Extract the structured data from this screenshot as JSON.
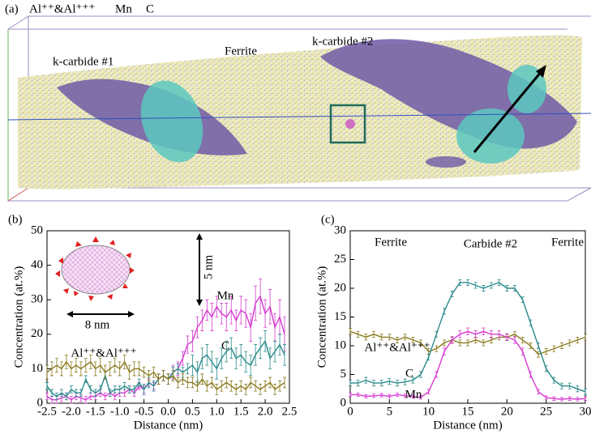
{
  "panel_a": {
    "label": "(a)",
    "legend": [
      {
        "text": "Al⁺⁺&Al⁺⁺⁺",
        "color": "#a07a2c"
      },
      {
        "text": "Mn",
        "color": "#d030c0"
      },
      {
        "text": "C",
        "color": "#2a9090"
      }
    ],
    "regions": [
      "k-carbide #1",
      "Ferrite",
      "k-carbide #2"
    ]
  },
  "chart_data": [
    {
      "type": "line",
      "xlabel": "Distance (nm)",
      "ylabel": "Concentration (at.%)",
      "annotations": [
        "(b)",
        "5 nm",
        "8 nm"
      ],
      "xlim": [
        -2.5,
        2.5
      ],
      "ylim": [
        0,
        50
      ],
      "xticks": [
        -2.5,
        {
          "value": -2,
          "label": "-2.0"
        },
        -1.5,
        {
          "value": -1,
          "label": "-1.0"
        },
        -0.5,
        {
          "value": 0,
          "label": "0.0"
        },
        0.5,
        {
          "value": 1,
          "label": "1.0"
        },
        1.5,
        {
          "value": 2,
          "label": "2.0"
        },
        2.5
      ],
      "yticks": [
        0,
        10,
        20,
        30,
        40,
        50
      ],
      "x": [
        -2.5,
        -2.4,
        -2.3,
        -2.2,
        -2.1,
        -2.0,
        -1.9,
        -1.8,
        -1.7,
        -1.6,
        -1.5,
        -1.4,
        -1.3,
        -1.2,
        -1.1,
        -1.0,
        -0.9,
        -0.8,
        -0.7,
        -0.6,
        -0.5,
        -0.4,
        -0.3,
        -0.2,
        -0.1,
        0,
        0.1,
        0.2,
        0.3,
        0.4,
        0.5,
        0.6,
        0.7,
        0.8,
        0.9,
        1.0,
        1.1,
        1.2,
        1.3,
        1.4,
        1.5,
        1.6,
        1.7,
        1.8,
        1.9,
        2.0,
        2.1,
        2.2,
        2.3,
        2.4
      ],
      "series": [
        {
          "name": "Mn",
          "color": "#d63bd0",
          "values": [
            2,
            1,
            1,
            1.5,
            2,
            1,
            2,
            1.5,
            1,
            2,
            2,
            3,
            2,
            3,
            2,
            3,
            3,
            4,
            3,
            5,
            4,
            6,
            5,
            7,
            8,
            7,
            9,
            10,
            13,
            17,
            18,
            22,
            24,
            27,
            25,
            28,
            26,
            25,
            27,
            24,
            27,
            26,
            22,
            29,
            31,
            26,
            28,
            22,
            25,
            20
          ],
          "errors": [
            1,
            1,
            1,
            1,
            1,
            1,
            1,
            1,
            1,
            1,
            1,
            1,
            1,
            1,
            1,
            1,
            1,
            1,
            1,
            1,
            1,
            1,
            1,
            1.5,
            1.5,
            1.5,
            2,
            2,
            2,
            2.5,
            3,
            3,
            3,
            3,
            4,
            3,
            3,
            4,
            4,
            3,
            4,
            4,
            4,
            5,
            5,
            4,
            5,
            4,
            5,
            5
          ]
        },
        {
          "name": "C",
          "color": "#2a8a8a",
          "values": [
            5,
            3,
            2,
            3,
            2,
            4,
            3,
            3,
            7,
            4,
            3,
            4,
            8,
            3,
            4,
            4,
            5,
            4,
            4,
            6,
            4,
            6,
            5,
            7,
            8,
            7,
            9,
            10,
            9,
            10,
            11,
            9,
            13,
            14,
            12,
            10,
            13,
            15,
            16,
            13,
            14,
            12,
            11,
            14,
            16,
            18,
            13,
            15,
            17,
            14
          ],
          "errors": [
            1,
            1,
            1,
            1,
            1,
            1,
            1,
            1,
            1,
            1,
            1,
            1,
            1,
            1,
            1,
            1,
            1,
            1,
            1,
            1,
            1.5,
            1.5,
            1.5,
            1.5,
            1.5,
            1.5,
            1.5,
            1.5,
            1.5,
            1.5,
            3,
            3,
            3,
            3,
            3,
            3,
            3,
            3,
            3,
            3,
            3,
            3,
            3,
            3,
            3,
            3,
            3,
            3,
            3,
            3
          ]
        },
        {
          "name": "Al⁺⁺&Al⁺⁺⁺",
          "color": "#8a7a1e",
          "values": [
            9,
            10,
            11,
            10,
            12,
            10,
            11,
            10,
            11,
            12,
            10,
            11,
            9,
            10,
            11,
            10,
            12,
            9,
            10,
            10,
            9,
            8,
            9,
            7,
            8,
            7,
            8,
            6,
            7,
            6,
            6,
            5,
            7,
            5,
            6,
            4,
            5,
            6,
            5,
            4,
            5,
            4,
            6,
            5,
            4,
            5,
            6,
            4,
            5,
            6
          ],
          "errors": [
            2,
            2,
            2,
            2,
            2,
            2,
            2,
            2,
            2,
            2,
            2,
            2,
            2,
            2,
            2,
            2,
            2,
            2,
            2,
            2,
            1.5,
            1.5,
            1.5,
            1.5,
            1.5,
            1.5,
            1.5,
            1.5,
            1.5,
            1.5,
            1.5,
            1.5,
            1.5,
            1.5,
            1.5,
            1.5,
            1.5,
            1.5,
            1.5,
            1.5,
            1.5,
            1.5,
            1.5,
            1.5,
            1.5,
            1.5,
            1.5,
            1.5,
            1.5,
            1.5
          ]
        }
      ]
    },
    {
      "type": "line",
      "xlabel": "Distance (nm)",
      "ylabel": "Concentration (at.%)",
      "annotations": [
        "(c)",
        "Ferrite",
        "Carbide #2",
        "Ferrite"
      ],
      "xlim": [
        0,
        30
      ],
      "ylim": [
        0,
        30
      ],
      "xticks": [
        0,
        5,
        10,
        15,
        20,
        25,
        30
      ],
      "yticks": [
        0,
        5,
        10,
        15,
        20,
        25,
        30
      ],
      "x": [
        0,
        1,
        2,
        3,
        4,
        5,
        6,
        7,
        8,
        9,
        10,
        11,
        12,
        13,
        14,
        15,
        16,
        17,
        18,
        19,
        20,
        21,
        22,
        23,
        24,
        25,
        26,
        27,
        28,
        29,
        30
      ],
      "series": [
        {
          "name": "Al⁺⁺&Al⁺⁺⁺",
          "color": "#8a7a1e",
          "values": [
            12.5,
            12,
            11.5,
            12,
            11.5,
            11.5,
            11,
            11.5,
            11,
            10.5,
            9,
            9.5,
            10.5,
            11,
            10.5,
            10.5,
            11,
            10.5,
            11,
            11.5,
            11.5,
            12,
            11,
            10,
            8.5,
            9,
            9.5,
            10,
            10.5,
            11,
            11.5
          ],
          "errors": [
            0.5,
            0.5,
            0.5,
            0.5,
            0.5,
            0.5,
            0.5,
            0.5,
            0.5,
            0.5,
            0.5,
            0.5,
            0.5,
            0.5,
            0.5,
            0.5,
            0.5,
            0.5,
            0.5,
            0.5,
            0.5,
            0.5,
            0.5,
            0.5,
            0.5,
            0.5,
            0.5,
            0.5,
            0.5,
            0.5,
            0.5
          ]
        },
        {
          "name": "C",
          "color": "#2a8a8a",
          "values": [
            3.5,
            3.5,
            4,
            3.5,
            3.5,
            3.8,
            3.5,
            3.7,
            4,
            5,
            8,
            12,
            16,
            19,
            21,
            21,
            20.5,
            20,
            20.5,
            21,
            20,
            20,
            18,
            14,
            10,
            6,
            4,
            3,
            3,
            2.5,
            2
          ],
          "errors": [
            0.5,
            0.5,
            0.5,
            0.5,
            0.5,
            0.5,
            0.5,
            0.5,
            0.5,
            0.5,
            0.5,
            0.5,
            0.5,
            0.5,
            0.5,
            0.5,
            0.5,
            0.5,
            0.5,
            0.5,
            0.5,
            0.5,
            0.5,
            0.5,
            0.5,
            0.5,
            0.5,
            0.5,
            0.5,
            0.5,
            0.5
          ]
        },
        {
          "name": "Mn",
          "color": "#d63bd0",
          "values": [
            1.5,
            1.5,
            1.2,
            1.3,
            1.4,
            1.2,
            1.5,
            1.3,
            1.2,
            1.0,
            2,
            5,
            9,
            11,
            12,
            12.5,
            12,
            12.5,
            12,
            12,
            11.5,
            11,
            9,
            5,
            2,
            1,
            0.8,
            0.7,
            0.8,
            0.7,
            0.8
          ],
          "errors": [
            0.3,
            0.3,
            0.3,
            0.3,
            0.3,
            0.3,
            0.3,
            0.3,
            0.3,
            0.3,
            0.4,
            0.5,
            0.6,
            0.6,
            0.6,
            0.6,
            0.6,
            0.6,
            0.6,
            0.6,
            0.6,
            0.6,
            0.6,
            0.5,
            0.4,
            0.3,
            0.3,
            0.3,
            0.3,
            0.3,
            0.3
          ]
        }
      ]
    }
  ]
}
